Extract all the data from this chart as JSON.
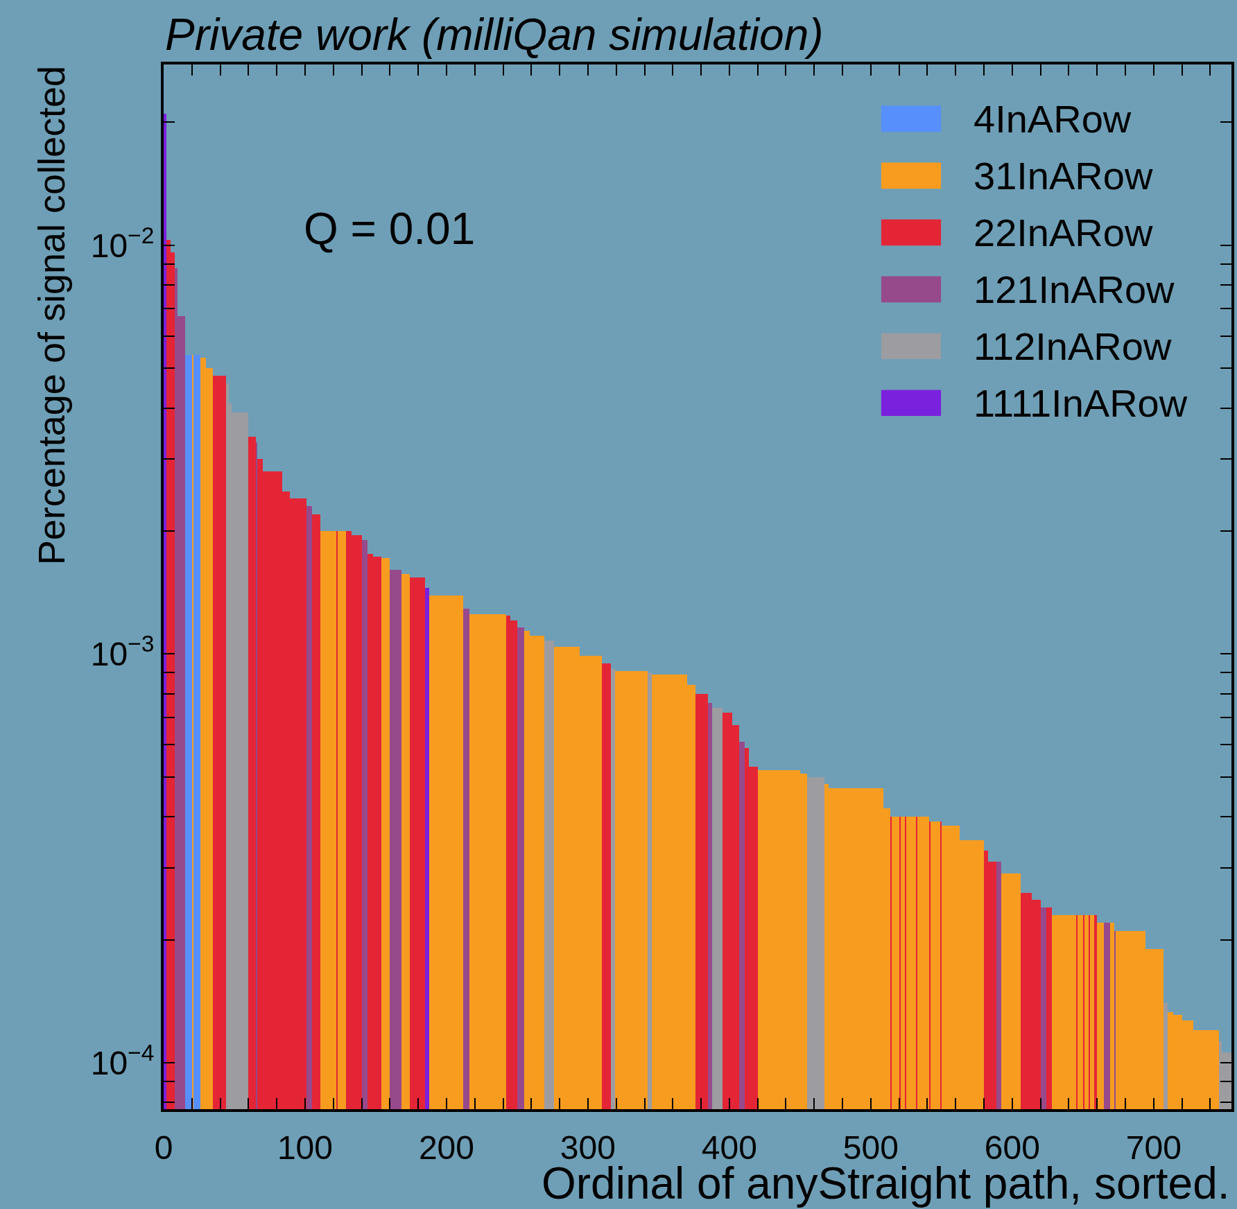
{
  "chart_data": {
    "type": "histogram",
    "title": "Private work (milliQan simulation)",
    "xlabel": "Ordinal of anyStraight path, sorted.",
    "ylabel": "Percentage of signal collected",
    "annotations": [
      "Q = 0.01"
    ],
    "log": true,
    "legend": "top right",
    "grid": false,
    "xlim": [
      0,
      755
    ],
    "xticks": [
      0,
      {
        "value": 20,
        "label": null
      },
      {
        "value": 40,
        "label": null
      },
      {
        "value": 60,
        "label": null
      },
      {
        "value": 80,
        "label": null
      },
      100,
      {
        "value": 120,
        "label": null
      },
      {
        "value": 140,
        "label": null
      },
      {
        "value": 160,
        "label": null
      },
      {
        "value": 180,
        "label": null
      },
      200,
      {
        "value": 220,
        "label": null
      },
      {
        "value": 240,
        "label": null
      },
      {
        "value": 260,
        "label": null
      },
      {
        "value": 280,
        "label": null
      },
      300,
      {
        "value": 320,
        "label": null
      },
      {
        "value": 340,
        "label": null
      },
      {
        "value": 360,
        "label": null
      },
      {
        "value": 380,
        "label": null
      },
      400,
      {
        "value": 420,
        "label": null
      },
      {
        "value": 440,
        "label": null
      },
      {
        "value": 460,
        "label": null
      },
      {
        "value": 480,
        "label": null
      },
      500,
      {
        "value": 520,
        "label": null
      },
      {
        "value": 540,
        "label": null
      },
      {
        "value": 560,
        "label": null
      },
      {
        "value": 580,
        "label": null
      },
      600,
      {
        "value": 620,
        "label": null
      },
      {
        "value": 640,
        "label": null
      },
      {
        "value": 660,
        "label": null
      },
      {
        "value": 680,
        "label": null
      },
      700,
      {
        "value": 720,
        "label": null
      },
      {
        "value": 740,
        "label": null
      }
    ],
    "ylim": [
      7.7e-05,
      0.0277
    ],
    "yticks": [
      {
        "value": 8e-05,
        "label": null
      },
      {
        "value": 9e-05,
        "label": null
      },
      {
        "value": 0.0001,
        "label": "10$^{−4}$"
      },
      {
        "value": 0.0002,
        "label": null
      },
      {
        "value": 0.0003,
        "label": null
      },
      {
        "value": 0.0004,
        "label": null
      },
      {
        "value": 0.0005,
        "label": null
      },
      {
        "value": 0.0006,
        "label": null
      },
      {
        "value": 0.0007,
        "label": null
      },
      {
        "value": 0.0008,
        "label": null
      },
      {
        "value": 0.0009,
        "label": null
      },
      {
        "value": 0.001,
        "label": "10$^{−3}$"
      },
      {
        "value": 0.002,
        "label": null
      },
      {
        "value": 0.003,
        "label": null
      },
      {
        "value": 0.004,
        "label": null
      },
      {
        "value": 0.005,
        "label": null
      },
      {
        "value": 0.006,
        "label": null
      },
      {
        "value": 0.007,
        "label": null
      },
      {
        "value": 0.008,
        "label": null
      },
      {
        "value": 0.009,
        "label": null
      },
      {
        "value": 0.01,
        "label": "10$^{−2}$"
      },
      {
        "value": 0.02,
        "label": null
      }
    ],
    "bins": [
      0,
      2,
      5,
      8,
      10,
      15,
      20,
      21,
      26,
      30,
      35,
      44,
      46,
      48,
      60,
      65,
      66,
      70,
      84,
      89,
      101,
      105,
      111,
      122,
      123,
      129,
      133,
      140,
      144,
      148,
      154,
      160,
      168,
      174,
      185,
      188,
      212,
      216,
      242,
      245,
      250,
      255,
      259,
      269,
      276,
      294,
      310,
      316,
      319,
      342,
      345,
      370,
      376,
      385,
      388,
      395,
      402,
      407,
      411,
      414,
      420,
      450,
      455,
      467,
      470,
      509,
      514,
      515,
      520,
      521,
      524,
      525,
      532,
      533,
      541,
      542,
      549,
      550,
      563,
      580,
      583,
      589,
      592,
      606,
      614,
      620,
      624,
      628,
      645,
      646,
      650,
      651,
      654,
      655,
      658,
      660,
      665,
      669,
      672,
      673,
      694,
      707,
      710,
      714,
      720,
      728,
      746,
      748,
      755
    ],
    "series": [
      {
        "name": "4InARow",
        "color": "#5790fc",
        "values": [
          null,
          null,
          null,
          null,
          null,
          0.0054,
          null,
          0.0054,
          null,
          null,
          null,
          null,
          null,
          null,
          null,
          null,
          null,
          null,
          null,
          null,
          null,
          null,
          null,
          null,
          null,
          null,
          null,
          null,
          null,
          null,
          null,
          null,
          null,
          null,
          null,
          null,
          null,
          null,
          null,
          null,
          null,
          null,
          null,
          null,
          null,
          null,
          null,
          null,
          null,
          null,
          null,
          null,
          null,
          null,
          null,
          null,
          null,
          null,
          null,
          null,
          null,
          null,
          null,
          null,
          null,
          null,
          null,
          null,
          null,
          null,
          null,
          null,
          null,
          null,
          null,
          null,
          null,
          null,
          null,
          null,
          null,
          null,
          null,
          null,
          null,
          null,
          null,
          null,
          null,
          null,
          null,
          null,
          null,
          null,
          null,
          null,
          null,
          null,
          null,
          null,
          null,
          null,
          null,
          null,
          null,
          null,
          null,
          null
        ]
      },
      {
        "name": "31InARow",
        "color": "#f89c20",
        "values": [
          null,
          null,
          null,
          null,
          null,
          null,
          0.0054,
          null,
          0.0053,
          0.005,
          null,
          null,
          null,
          null,
          null,
          null,
          null,
          null,
          null,
          null,
          null,
          null,
          0.002,
          null,
          0.002,
          null,
          null,
          null,
          null,
          null,
          0.00172,
          null,
          0.00157,
          null,
          null,
          0.00139,
          null,
          0.00125,
          null,
          null,
          null,
          0.00114,
          0.00111,
          null,
          0.00104,
          0.00099,
          null,
          null,
          0.00091,
          null,
          0.00089,
          0.00084,
          null,
          null,
          null,
          null,
          null,
          null,
          null,
          null,
          0.00052,
          0.00051,
          null,
          0.00048,
          0.00047,
          0.00042,
          null,
          0.0004,
          null,
          0.0004,
          null,
          0.0004,
          null,
          0.0004,
          null,
          0.00039,
          null,
          0.00038,
          0.00035,
          null,
          null,
          null,
          0.00029,
          null,
          null,
          null,
          null,
          0.00023,
          null,
          0.00023,
          null,
          0.00023,
          null,
          0.00023,
          null,
          0.00022,
          null,
          0.00022,
          null,
          0.00021,
          0.00019,
          null,
          0.000133,
          0.000131,
          0.000127,
          0.00012,
          null,
          null
        ]
      },
      {
        "name": "22InARow",
        "color": "#e42536",
        "values": [
          null,
          0.0103,
          0.0096,
          null,
          null,
          null,
          null,
          null,
          null,
          null,
          0.0048,
          null,
          null,
          null,
          0.0034,
          null,
          0.003,
          0.0028,
          0.0025,
          0.0024,
          null,
          0.0022,
          null,
          0.002,
          null,
          0.002,
          0.00195,
          null,
          0.00176,
          0.00173,
          null,
          null,
          null,
          0.00154,
          null,
          null,
          null,
          null,
          0.00124,
          0.00121,
          null,
          null,
          null,
          null,
          null,
          null,
          0.00095,
          null,
          null,
          null,
          null,
          null,
          0.0008,
          null,
          null,
          0.00072,
          0.00067,
          null,
          0.00059,
          0.00053,
          null,
          null,
          null,
          null,
          null,
          null,
          0.0004,
          null,
          0.0004,
          null,
          0.0004,
          null,
          0.0004,
          null,
          0.00039,
          null,
          0.00039,
          null,
          null,
          0.00033,
          0.00031,
          null,
          null,
          0.00026,
          0.00025,
          null,
          0.00024,
          null,
          0.00023,
          null,
          0.00023,
          null,
          0.00023,
          null,
          0.00023,
          null,
          null,
          null,
          null,
          null,
          null,
          null,
          null,
          null,
          null,
          null,
          null,
          null
        ]
      },
      {
        "name": "121InARow",
        "color": "#964a8b",
        "values": [
          null,
          null,
          null,
          0.0088,
          0.0067,
          null,
          null,
          null,
          null,
          null,
          null,
          null,
          null,
          null,
          null,
          0.0033,
          null,
          null,
          null,
          null,
          0.0023,
          null,
          null,
          null,
          null,
          null,
          null,
          0.0019,
          null,
          null,
          null,
          0.00161,
          null,
          null,
          null,
          null,
          0.00129,
          null,
          null,
          null,
          0.00116,
          null,
          null,
          null,
          null,
          null,
          null,
          null,
          null,
          null,
          null,
          null,
          null,
          0.00076,
          null,
          null,
          null,
          0.00061,
          null,
          null,
          null,
          null,
          null,
          null,
          null,
          null,
          null,
          null,
          null,
          null,
          null,
          null,
          null,
          null,
          null,
          null,
          null,
          null,
          null,
          null,
          null,
          0.00031,
          null,
          null,
          null,
          0.00024,
          null,
          null,
          null,
          null,
          null,
          null,
          null,
          null,
          null,
          null,
          0.00022,
          null,
          0.00021,
          null,
          null,
          null,
          null,
          null,
          null,
          null,
          null,
          null
        ]
      },
      {
        "name": "112InARow",
        "color": "#9c9ca1",
        "values": [
          null,
          null,
          null,
          null,
          null,
          null,
          null,
          null,
          null,
          null,
          null,
          0.0046,
          0.0041,
          0.0039,
          null,
          null,
          null,
          null,
          null,
          null,
          null,
          null,
          null,
          null,
          null,
          null,
          null,
          null,
          null,
          null,
          null,
          null,
          null,
          null,
          null,
          null,
          null,
          null,
          null,
          null,
          null,
          null,
          null,
          0.00108,
          null,
          null,
          null,
          0.00092,
          null,
          0.0009,
          null,
          null,
          null,
          null,
          0.00074,
          null,
          null,
          null,
          null,
          null,
          null,
          null,
          0.0005,
          null,
          null,
          null,
          null,
          null,
          null,
          null,
          null,
          null,
          null,
          null,
          null,
          null,
          null,
          null,
          null,
          null,
          null,
          null,
          null,
          null,
          null,
          null,
          null,
          null,
          null,
          null,
          null,
          null,
          null,
          null,
          null,
          null,
          null,
          null,
          null,
          null,
          null,
          0.00014,
          null,
          null,
          null,
          null,
          0.000113,
          0.000106
        ]
      },
      {
        "name": "1111InARow",
        "color": "#7a21dd",
        "values": [
          0.021,
          null,
          null,
          null,
          null,
          null,
          null,
          null,
          null,
          null,
          null,
          null,
          null,
          null,
          null,
          null,
          null,
          null,
          null,
          null,
          null,
          null,
          null,
          null,
          null,
          null,
          null,
          null,
          null,
          null,
          null,
          null,
          null,
          null,
          0.00145,
          null,
          null,
          null,
          null,
          null,
          null,
          null,
          null,
          null,
          null,
          null,
          null,
          null,
          null,
          null,
          null,
          null,
          null,
          null,
          null,
          null,
          null,
          null,
          null,
          null,
          null,
          null,
          null,
          null,
          null,
          null,
          null,
          null,
          null,
          null,
          null,
          null,
          null,
          null,
          null,
          null,
          null,
          null,
          null,
          null,
          null,
          null,
          null,
          null,
          null,
          null,
          null,
          null,
          null,
          null,
          null,
          null,
          null,
          null,
          null,
          null,
          null,
          null,
          null,
          null,
          null,
          null,
          null,
          null,
          null,
          null,
          null,
          null
        ]
      }
    ]
  }
}
